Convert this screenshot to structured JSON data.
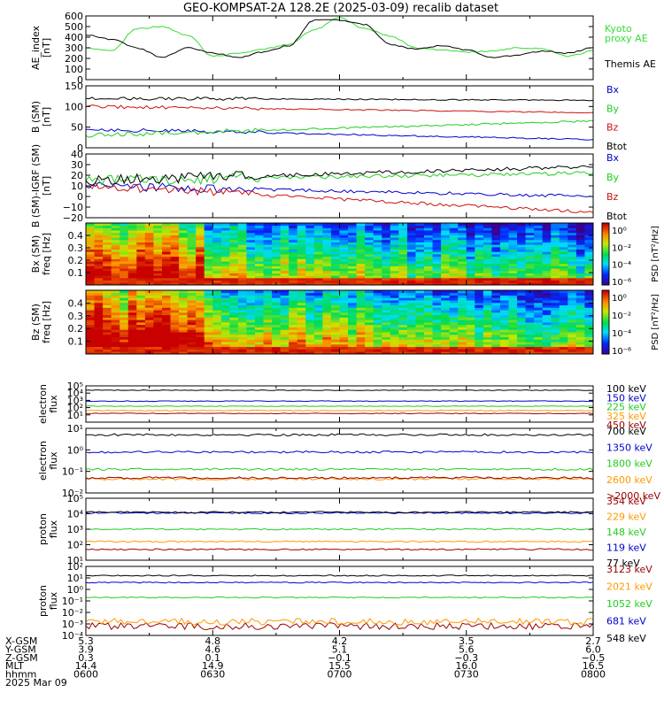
{
  "title": "GEO-KOMPSAT-2A 128.2E (2025-03-09) recalib dataset",
  "colors": {
    "black": "#000000",
    "blue": "#0000cc",
    "green": "#22cc22",
    "red": "#cc1111",
    "orange": "#ff9900",
    "darkred": "#990000",
    "kyoto_green": "#33dd33"
  },
  "chart_data": [
    {
      "type": "line",
      "ylabel": [
        "AE_index",
        "[nT]"
      ],
      "ylim": [
        0,
        600
      ],
      "yticks": [
        "0",
        "100",
        "200",
        "300",
        "400",
        "500",
        "600"
      ],
      "legend_placement": "right",
      "series": [
        {
          "name": "Kyoto\nproxy AE",
          "color": "#33dd33",
          "x_frac": [
            0,
            0.05,
            0.1,
            0.15,
            0.2,
            0.25,
            0.3,
            0.35,
            0.4,
            0.45,
            0.5,
            0.55,
            0.6,
            0.65,
            0.7,
            0.75,
            0.8,
            0.85,
            0.9,
            0.95,
            1.0
          ],
          "values": [
            300,
            270,
            480,
            500,
            420,
            220,
            250,
            290,
            330,
            470,
            580,
            480,
            410,
            300,
            280,
            260,
            270,
            300,
            290,
            220,
            270
          ]
        },
        {
          "name": "Themis AE",
          "color": "#000000",
          "x_frac": [
            0,
            0.05,
            0.1,
            0.15,
            0.2,
            0.25,
            0.3,
            0.35,
            0.4,
            0.45,
            0.5,
            0.55,
            0.6,
            0.65,
            0.7,
            0.75,
            0.8,
            0.85,
            0.9,
            0.95,
            1.0
          ],
          "values": [
            420,
            380,
            300,
            210,
            300,
            250,
            210,
            260,
            320,
            560,
            560,
            520,
            330,
            290,
            320,
            280,
            210,
            230,
            270,
            250,
            300
          ]
        }
      ]
    },
    {
      "type": "line",
      "ylabel": [
        "B (SM)",
        "[nT]"
      ],
      "ylim": [
        0,
        150
      ],
      "yticks": [
        "0",
        "50",
        "100",
        "150"
      ],
      "legend_placement": "right",
      "series": [
        {
          "name": "Bx",
          "color": "#0000cc",
          "start": 45,
          "end": 20,
          "noise": 6
        },
        {
          "name": "By",
          "color": "#22cc22",
          "start": 30,
          "end": 65,
          "noise": 7
        },
        {
          "name": "Bz",
          "color": "#cc1111",
          "start": 100,
          "end": 85,
          "noise": 5
        },
        {
          "name": "Btot",
          "color": "#000000",
          "start": 120,
          "end": 115,
          "noise": 5
        }
      ]
    },
    {
      "type": "line",
      "ylabel": [
        "B (SM)-IGRF (SM)",
        "[nT]"
      ],
      "ylim": [
        -20,
        40
      ],
      "yticks": [
        "−20",
        "−10",
        "0",
        "10",
        "20",
        "30",
        "40"
      ],
      "legend_placement": "right",
      "series": [
        {
          "name": "Bx",
          "color": "#0000cc",
          "start": 10,
          "end": 0,
          "noise": 5
        },
        {
          "name": "By",
          "color": "#22cc22",
          "start": 15,
          "end": 22,
          "noise": 6
        },
        {
          "name": "Bz",
          "color": "#cc1111",
          "start": 10,
          "end": -15,
          "noise": 5
        },
        {
          "name": "Btot",
          "color": "#000000",
          "start": 15,
          "end": 28,
          "noise": 6
        }
      ]
    },
    {
      "type": "heatmap",
      "ylabel": [
        "Bx (SM)",
        "freq [Hz]"
      ],
      "ylim": [
        0,
        0.5
      ],
      "yticks": [
        "0.1",
        "0.2",
        "0.3",
        "0.4"
      ],
      "colorbar_label": "PSD [nT²/Hz]",
      "colorbar_ticks": [
        "10⁰",
        "10⁻²",
        "10⁻⁴",
        "10⁻⁶"
      ],
      "intensity": 0.85
    },
    {
      "type": "heatmap",
      "ylabel": [
        "Bz (SM)",
        "freq [Hz]"
      ],
      "ylim": [
        0,
        0.5
      ],
      "yticks": [
        "0.1",
        "0.2",
        "0.3",
        "0.4"
      ],
      "colorbar_label": "PSD [nT²/Hz]",
      "colorbar_ticks": [
        "10⁰",
        "10⁻²",
        "10⁻⁴",
        "10⁻⁶"
      ],
      "intensity": 0.95
    },
    {
      "type": "line",
      "ylabel": [
        "electron",
        "flux"
      ],
      "log": true,
      "ylim_exp": [
        0,
        5
      ],
      "yticks": [
        {
          "exp": 1,
          "label": "10¹"
        },
        {
          "exp": 2,
          "label": "10²"
        },
        {
          "exp": 3,
          "label": "10³"
        },
        {
          "exp": 4,
          "label": "10⁴"
        },
        {
          "exp": 5,
          "label": "10⁵"
        }
      ],
      "legend_placement": "right",
      "series": [
        {
          "name": "100 keV",
          "color": "#000000",
          "log_value": 4.4
        },
        {
          "name": "150 keV",
          "color": "#0000cc",
          "log_value": 2.9
        },
        {
          "name": "225 keV",
          "color": "#22cc22",
          "log_value": 2.2
        },
        {
          "name": "325 keV",
          "color": "#ff9900",
          "log_value": 1.6
        },
        {
          "name": "450 keV",
          "color": "#990000",
          "log_value": 1.2
        }
      ]
    },
    {
      "type": "line",
      "ylabel": [
        "electron",
        "flux"
      ],
      "log": true,
      "ylim_exp": [
        -2,
        1
      ],
      "yticks": [
        {
          "exp": -2,
          "label": "10⁻²"
        },
        {
          "exp": -1,
          "label": "10⁻¹"
        },
        {
          "exp": 0,
          "label": "10⁰"
        },
        {
          "exp": 1,
          "label": "10¹"
        }
      ],
      "legend_placement": "right",
      "series": [
        {
          "name": "700 keV",
          "color": "#000000",
          "log_value": 0.7
        },
        {
          "name": "1350 keV",
          "color": "#0000cc",
          "log_value": -0.1
        },
        {
          "name": "1800 keV",
          "color": "#22cc22",
          "log_value": -0.9
        },
        {
          "name": "2600 keV",
          "color": "#ff9900",
          "log_value": -1.35
        },
        {
          "name": ">2000 keV",
          "color": "#990000",
          "log_value": -1.3
        }
      ]
    },
    {
      "type": "line",
      "ylabel": [
        "proton",
        "flux"
      ],
      "log": true,
      "ylim_exp": [
        1,
        5
      ],
      "yticks": [
        {
          "exp": 1,
          "label": "10¹"
        },
        {
          "exp": 2,
          "label": "10²"
        },
        {
          "exp": 3,
          "label": "10³"
        },
        {
          "exp": 4,
          "label": "10⁴"
        },
        {
          "exp": 5,
          "label": "10⁵"
        }
      ],
      "legend_placement": "right",
      "series": [
        {
          "name": "354 keV",
          "color": "#990000",
          "log_value": 1.7
        },
        {
          "name": "229 keV",
          "color": "#ff9900",
          "log_value": 2.2
        },
        {
          "name": "148 keV",
          "color": "#22cc22",
          "log_value": 3.0
        },
        {
          "name": "119 keV",
          "color": "#0000cc",
          "log_value": 4.05
        },
        {
          "name": "77 keV",
          "color": "#000000",
          "log_value": 4.1
        }
      ]
    },
    {
      "type": "line",
      "ylabel": [
        "proton",
        "flux"
      ],
      "log": true,
      "ylim_exp": [
        -4,
        2
      ],
      "yticks": [
        {
          "exp": -4,
          "label": "10⁻⁴"
        },
        {
          "exp": -3,
          "label": "10⁻³"
        },
        {
          "exp": -2,
          "label": "10⁻²"
        },
        {
          "exp": -1,
          "label": "10⁻¹"
        },
        {
          "exp": 0,
          "label": "10⁰"
        },
        {
          "exp": 1,
          "label": "10¹"
        },
        {
          "exp": 2,
          "label": "10²"
        }
      ],
      "legend_placement": "right",
      "series": [
        {
          "name": "3123 keV",
          "color": "#990000",
          "log_value": -3.2
        },
        {
          "name": "2021 keV",
          "color": "#ff9900",
          "log_value": -2.8
        },
        {
          "name": "1052 keV",
          "color": "#22cc22",
          "log_value": -0.7
        },
        {
          "name": "681 keV",
          "color": "#0000cc",
          "log_value": 0.6
        },
        {
          "name": "548 keV",
          "color": "#000000",
          "log_value": 1.2
        }
      ]
    }
  ],
  "ephemeris": {
    "labels": [
      "X-GSM",
      "Y-GSM",
      "Z-GSM",
      "MLT",
      "hhmm",
      "2025 Mar 09"
    ],
    "columns": [
      [
        "5.3",
        "3.9",
        "0.3",
        "14.4",
        "0600"
      ],
      [
        "4.8",
        "4.6",
        "0.1",
        "14.9",
        "0630"
      ],
      [
        "4.2",
        "5.1",
        "−0.1",
        "15.5",
        "0700"
      ],
      [
        "3.5",
        "5.6",
        "−0.3",
        "16.0",
        "0730"
      ],
      [
        "2.7",
        "6.0",
        "−0.5",
        "16.5",
        "0800"
      ]
    ]
  }
}
